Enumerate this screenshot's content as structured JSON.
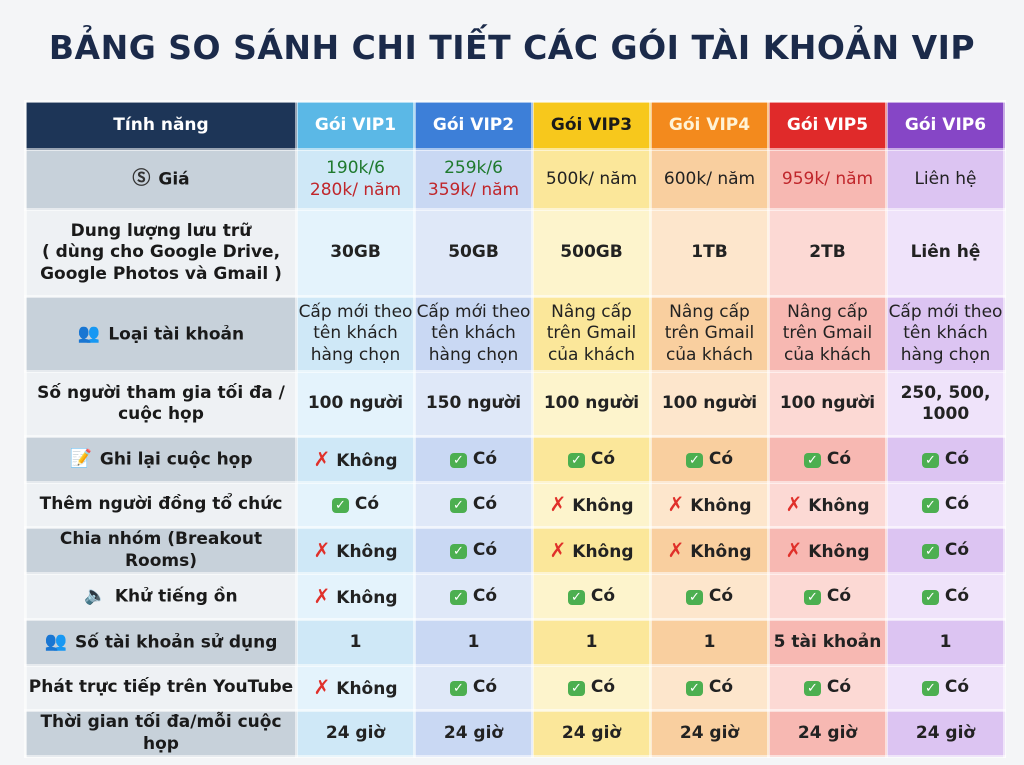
{
  "title": "BẢNG SO SÁNH CHI TIẾT CÁC GÓI TÀI KHOẢN VIP",
  "header": [
    "Tính năng",
    "Gói VIP1",
    "Gói VIP2",
    "Gói VIP3",
    "Gói VIP4",
    "Gói VIP5",
    "Gói VIP6"
  ],
  "colors": {
    "feature_header": "#1d3557",
    "feature_row_a": "#c7d1da",
    "feature_row_b": "#eef1f4",
    "plans": [
      {
        "head": "#5bb8e6",
        "a": "#cfe8f7",
        "b": "#e4f3fc",
        "headText": "#ffffff"
      },
      {
        "head": "#3d7fd8",
        "a": "#c9d8f3",
        "b": "#dfe8f8",
        "headText": "#ffffff"
      },
      {
        "head": "#f7c81c",
        "a": "#fbe79a",
        "b": "#fdf4cc",
        "headText": "#1a1a1a"
      },
      {
        "head": "#f38a1d",
        "a": "#f9cf9f",
        "b": "#fde6cc",
        "headText": "#fff3d6"
      },
      {
        "head": "#e02a2a",
        "a": "#f7b8b2",
        "b": "#fcd9d4",
        "headText": "#ffffff"
      },
      {
        "head": "#8646c6",
        "a": "#dcc4f2",
        "b": "#efe3fa",
        "headText": "#ffffff"
      }
    ],
    "price_green": "#1f7a2e",
    "price_red": "#c0262b"
  },
  "rows": [
    {
      "feature": "Giá",
      "icon": "dollar-icon",
      "h": 60,
      "cells": [
        [
          "190k/6",
          "280k/ năm"
        ],
        [
          "259k/6",
          "359k/ năm"
        ],
        [
          "500k/ năm"
        ],
        [
          "600k/ năm"
        ],
        [
          "959k/ năm"
        ],
        [
          "Liên hệ"
        ]
      ]
    },
    {
      "feature": "Dung lượng lưu trữ\n( dùng cho Google Drive,\nGoogle Photos và Gmail )",
      "h": 87,
      "cells": [
        "30GB",
        "50GB",
        "500GB",
        "1TB",
        "2TB",
        "Liên hệ"
      ]
    },
    {
      "feature": "Loại tài khoản",
      "icon": "users-icon",
      "h": 75,
      "cells": [
        "Cấp mới theo\ntên khách\nhàng chọn",
        "Cấp mới theo\ntên khách\nhàng chọn",
        "Nâng cấp\ntrên Gmail\ncủa khách",
        "Nâng cấp\ntrên Gmail\ncủa khách",
        "Nâng cấp\ntrên Gmail\ncủa khách",
        "Cấp mới theo\ntên khách\nhàng chọn"
      ]
    },
    {
      "feature": "Số người tham gia tối đa /\ncuộc họp",
      "h": 65,
      "cells": [
        "100 người",
        "150 người",
        "100 người",
        "100 người",
        "100 người",
        "250, 500,\n1000"
      ]
    },
    {
      "feature": "Ghi lại cuộc họp",
      "icon": "document-icon",
      "h": 46,
      "cells": [
        "✗Không",
        "✓Có",
        "✓Có",
        "✓Có",
        "✓Có",
        "✓Có"
      ]
    },
    {
      "feature": "Thêm người đồng tổ chức",
      "h": 45,
      "cells": [
        "✓Có",
        "✓Có",
        "✗Không",
        "✗Không",
        "✗Không",
        "✓Có"
      ]
    },
    {
      "feature": "Chia nhóm (Breakout Rooms)",
      "h": 46,
      "cells": [
        "✗Không",
        "✓Có",
        "✗Không",
        "✗Không",
        "✗Không",
        "✓Có"
      ]
    },
    {
      "feature": "Khử tiếng ồn",
      "icon": "speaker-icon",
      "h": 46,
      "cells": [
        "✗Không",
        "✓Có",
        "✓Có",
        "✓Có",
        "✓Có",
        "✓Có"
      ]
    },
    {
      "feature": "Số tài khoản sử dụng",
      "icon": "users-icon",
      "h": 46,
      "cells": [
        "1",
        "1",
        "1",
        "1",
        "5 tài khoản",
        "1"
      ]
    },
    {
      "feature": "Phát trực tiếp trên YouTube",
      "h": 45,
      "cells": [
        "✗Không",
        "✓Có",
        "✓Có",
        "✓Có",
        "✓Có",
        "✓Có"
      ]
    },
    {
      "feature": "Thời gian tối đa/mỗi cuộc họp",
      "h": 46,
      "cells": [
        "24 giờ",
        "24 giờ",
        "24 giờ",
        "24 giờ",
        "24 giờ",
        "24 giờ"
      ]
    }
  ]
}
